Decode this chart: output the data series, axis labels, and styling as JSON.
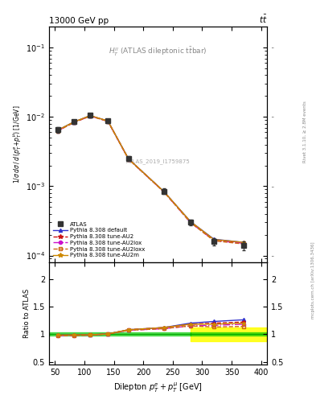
{
  "x_data": [
    55,
    82,
    110,
    140,
    175,
    235,
    280,
    320,
    370
  ],
  "atlas_y": [
    0.0065,
    0.0085,
    0.0105,
    0.0088,
    0.0025,
    0.00085,
    0.0003,
    0.00016,
    0.00014
  ],
  "atlas_yerr": [
    0.00055,
    0.0006,
    0.0007,
    0.0006,
    0.0002,
    8e-05,
    3e-05,
    2e-05,
    2e-05
  ],
  "pythia_default_y": [
    0.00645,
    0.00845,
    0.01045,
    0.00875,
    0.00248,
    0.00084,
    0.00031,
    0.000172,
    0.000155
  ],
  "pythia_au2_y": [
    0.00635,
    0.00835,
    0.01035,
    0.0087,
    0.00247,
    0.000835,
    0.000305,
    0.000168,
    0.000152
  ],
  "pythia_au2lox_y": [
    0.0063,
    0.0083,
    0.0103,
    0.00865,
    0.00245,
    0.00083,
    0.0003,
    0.000165,
    0.00015
  ],
  "pythia_au2loxx_y": [
    0.0063,
    0.0083,
    0.0103,
    0.00865,
    0.00245,
    0.00083,
    0.0003,
    0.000163,
    0.000147
  ],
  "pythia_au2m_y": [
    0.00645,
    0.00845,
    0.01045,
    0.00875,
    0.00248,
    0.00084,
    0.00031,
    0.00017,
    0.000155
  ],
  "ratio_default": [
    0.985,
    0.988,
    0.99,
    1.005,
    1.08,
    1.12,
    1.2,
    1.23,
    1.26
  ],
  "ratio_au2": [
    0.977,
    0.982,
    0.986,
    1.005,
    1.08,
    1.12,
    1.18,
    1.2,
    1.22
  ],
  "ratio_au2lox": [
    0.97,
    0.978,
    0.983,
    1.003,
    1.07,
    1.1,
    1.15,
    1.16,
    1.18
  ],
  "ratio_au2loxx": [
    0.97,
    0.978,
    0.983,
    1.003,
    1.07,
    1.1,
    1.15,
    1.13,
    1.14
  ],
  "ratio_au2m": [
    0.985,
    0.988,
    0.99,
    1.005,
    1.08,
    1.12,
    1.18,
    1.18,
    1.2
  ],
  "color_atlas": "#333333",
  "color_default": "#3333cc",
  "color_au2": "#cc1111",
  "color_au2lox": "#cc11cc",
  "color_au2loxx": "#cc6611",
  "color_au2m": "#cc8800",
  "xlim": [
    40,
    410
  ],
  "ylim_main": [
    8e-05,
    0.2
  ],
  "ylim_ratio": [
    0.45,
    2.3
  ],
  "yticks_ratio": [
    0.5,
    1.0,
    1.5,
    2.0
  ],
  "ytick_labels_ratio": [
    "0.5",
    "1",
    "1.5",
    "2"
  ]
}
